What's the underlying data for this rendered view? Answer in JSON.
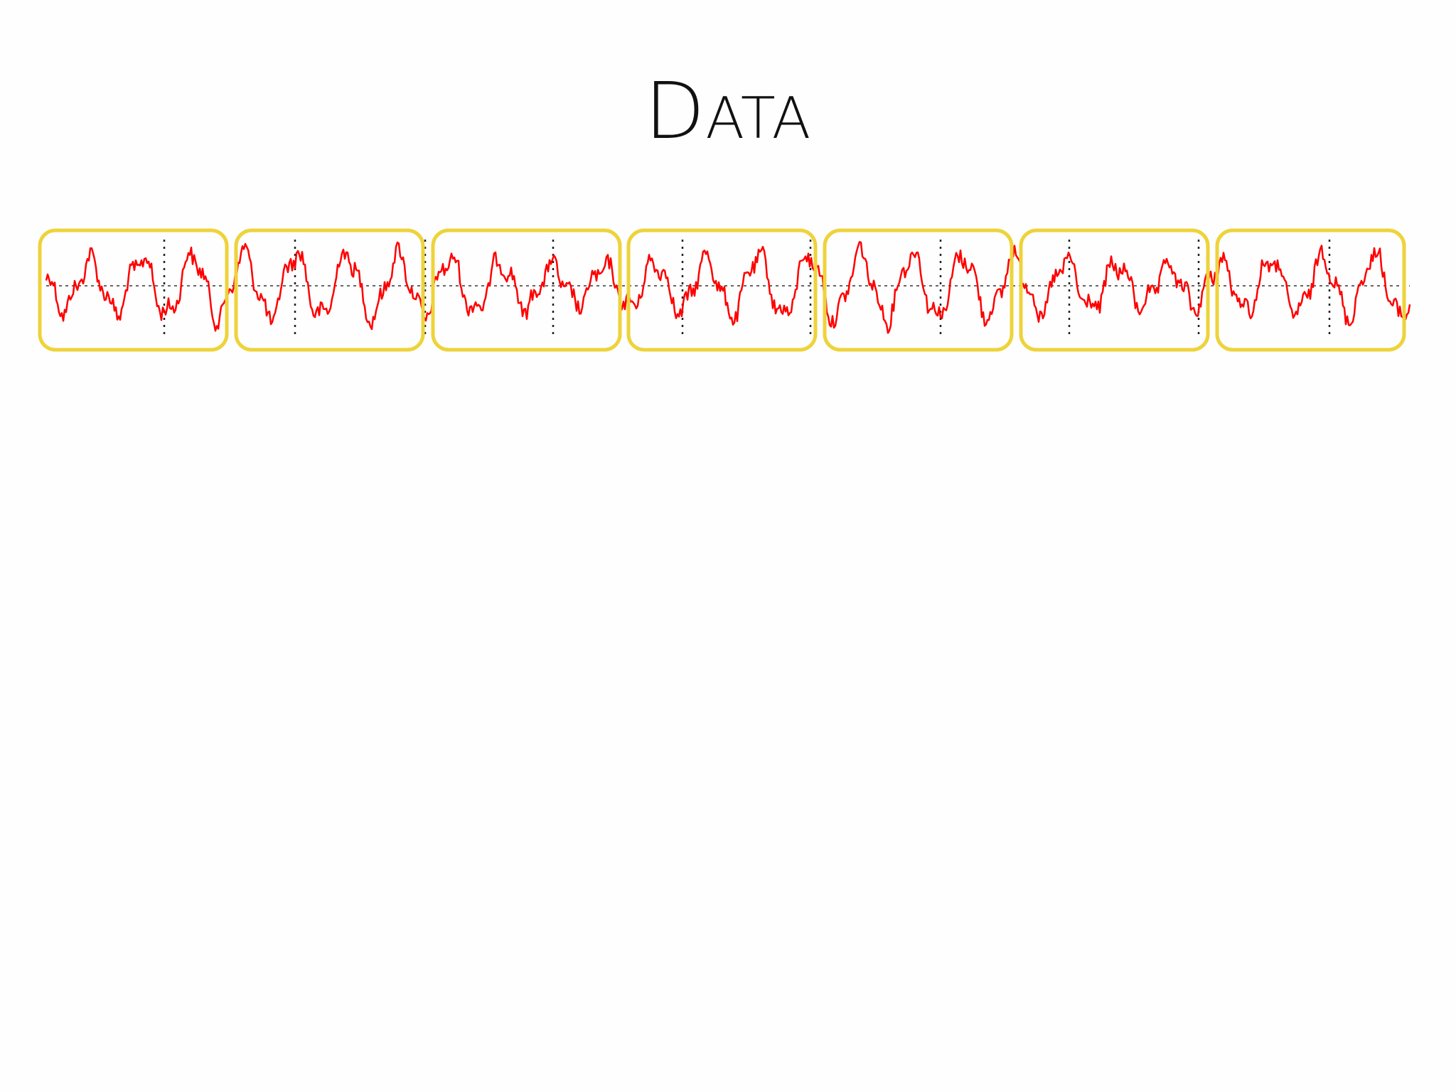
{
  "title": "DATA"
}
